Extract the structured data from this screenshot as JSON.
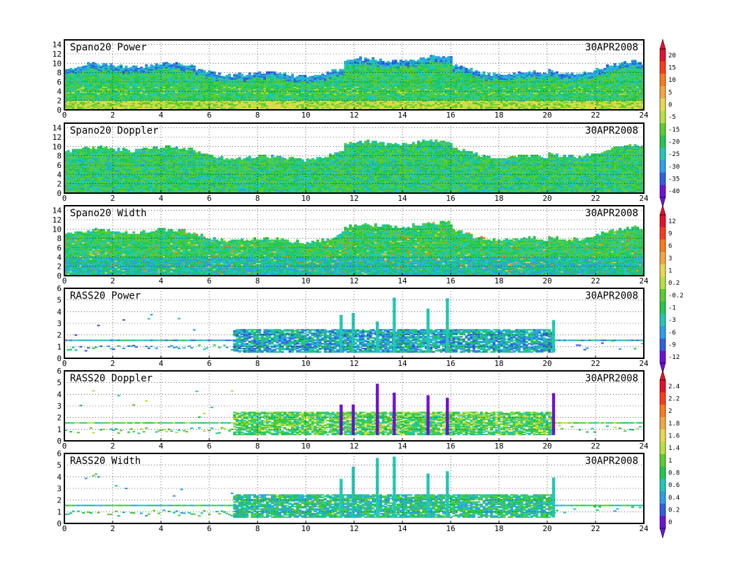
{
  "chart_data": [
    {
      "type": "heatmap",
      "title": "Spano20 Power",
      "date": "30APR2008",
      "x_ticks": [
        0,
        2,
        4,
        6,
        8,
        10,
        12,
        14,
        16,
        18,
        20,
        22,
        24
      ],
      "y_ticks": [
        0,
        2,
        4,
        6,
        8,
        10,
        12,
        14
      ],
      "ylim": [
        0,
        15
      ],
      "xlim": [
        0,
        24
      ],
      "fill": "dense",
      "colorbar_group": 0
    },
    {
      "type": "heatmap",
      "title": "Spano20 Doppler",
      "date": "30APR2008",
      "x_ticks": [
        0,
        2,
        4,
        6,
        8,
        10,
        12,
        14,
        16,
        18,
        20,
        22,
        24
      ],
      "y_ticks": [
        0,
        2,
        4,
        6,
        8,
        10,
        12,
        14
      ],
      "ylim": [
        0,
        15
      ],
      "xlim": [
        0,
        24
      ],
      "fill": "dense",
      "colorbar_group": 0
    },
    {
      "type": "heatmap",
      "title": "Spano20 Width",
      "date": "30APR2008",
      "x_ticks": [
        0,
        2,
        4,
        6,
        8,
        10,
        12,
        14,
        16,
        18,
        20,
        22,
        24
      ],
      "y_ticks": [
        0,
        2,
        4,
        6,
        8,
        10,
        12,
        14
      ],
      "ylim": [
        0,
        15
      ],
      "xlim": [
        0,
        24
      ],
      "fill": "dense",
      "colorbar_group": 1
    },
    {
      "type": "heatmap",
      "title": "RASS20 Power",
      "date": "30APR2008",
      "x_ticks": [
        0,
        2,
        4,
        6,
        8,
        10,
        12,
        14,
        16,
        18,
        20,
        22,
        24
      ],
      "y_ticks": [
        0,
        1,
        2,
        3,
        4,
        5,
        6
      ],
      "ylim": [
        0,
        6
      ],
      "xlim": [
        0,
        24
      ],
      "fill": "sparse",
      "colorbar_group": 1
    },
    {
      "type": "heatmap",
      "title": "RASS20 Doppler",
      "date": "30APR2008",
      "x_ticks": [
        0,
        2,
        4,
        6,
        8,
        10,
        12,
        14,
        16,
        18,
        20,
        22,
        24
      ],
      "y_ticks": [
        0,
        1,
        2,
        3,
        4,
        5,
        6
      ],
      "ylim": [
        0,
        6
      ],
      "xlim": [
        0,
        24
      ],
      "fill": "sparse",
      "colorbar_group": 2
    },
    {
      "type": "heatmap",
      "title": "RASS20 Width",
      "date": "30APR2008",
      "x_ticks": [
        0,
        2,
        4,
        6,
        8,
        10,
        12,
        14,
        16,
        18,
        20,
        22,
        24
      ],
      "y_ticks": [
        0,
        1,
        2,
        3,
        4,
        5,
        6
      ],
      "ylim": [
        0,
        6
      ],
      "xlim": [
        0,
        24
      ],
      "fill": "sparse",
      "colorbar_group": 2
    }
  ],
  "colorbars": [
    {
      "labels": [
        "20",
        "15",
        "10",
        "5",
        "0",
        "-5",
        "-15",
        "-20",
        "-25",
        "-30",
        "-35",
        "-40"
      ],
      "colors": [
        "#e8102a",
        "#ff3a1a",
        "#ff7a1a",
        "#f4a640",
        "#e8d850",
        "#b8e040",
        "#5ccc30",
        "#20c850",
        "#20c8b8",
        "#2ca0e8",
        "#3060e0",
        "#7010d8"
      ]
    },
    {
      "labels": [
        "12",
        "9",
        "6",
        "3",
        "1",
        "0.2",
        "-0.2",
        "-1",
        "-3",
        "-6",
        "-9",
        "-12"
      ],
      "colors": [
        "#e8102a",
        "#ff3a1a",
        "#ff7a1a",
        "#f4a640",
        "#e8d850",
        "#b8e040",
        "#5ccc30",
        "#20c850",
        "#20c8b8",
        "#2ca0e8",
        "#3060e0",
        "#7010d8"
      ]
    },
    {
      "labels": [
        "2.4",
        "2.2",
        "2",
        "1.8",
        "1.6",
        "1.4",
        "1",
        "0.8",
        "0.6",
        "0.4",
        "0.2",
        "0"
      ],
      "colors": [
        "#e8102a",
        "#ff3a1a",
        "#ff7a1a",
        "#f4a640",
        "#e8d850",
        "#b8e040",
        "#5ccc30",
        "#20c850",
        "#20c8b8",
        "#2ca0e8",
        "#3060e0",
        "#7010d8"
      ]
    }
  ]
}
